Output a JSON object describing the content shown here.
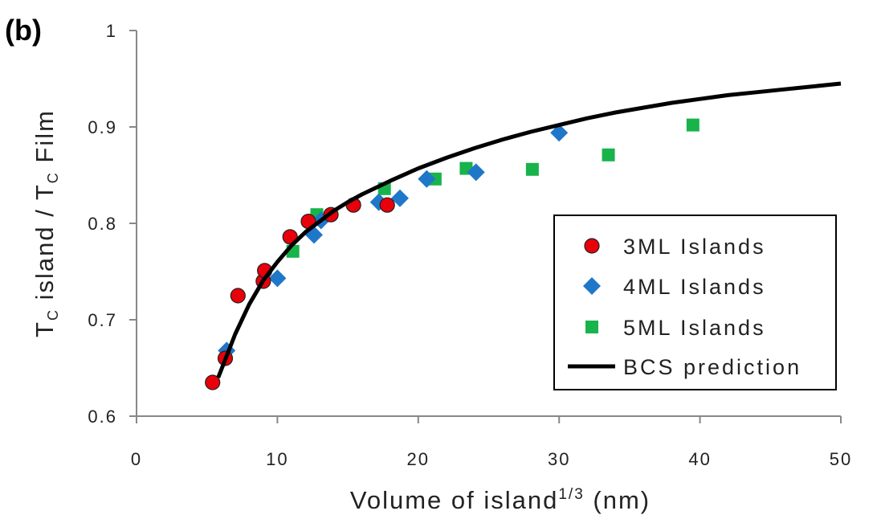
{
  "panel_label": "(b)",
  "chart_data": {
    "type": "scatter",
    "xlabel": {
      "main": "Volume of island",
      "sup": "1/3",
      "unit": " (nm)"
    },
    "ylabel": {
      "parts": [
        "T",
        "C",
        " island / T",
        "C",
        " Film"
      ]
    },
    "xlim": [
      0,
      50
    ],
    "ylim": [
      0.6,
      1.0
    ],
    "xticks": [
      0,
      10,
      20,
      30,
      40,
      50
    ],
    "yticks": [
      0.6,
      0.7,
      0.8,
      0.9,
      1.0
    ],
    "xtick_labels": [
      "0",
      "10",
      "20",
      "30",
      "40",
      "50"
    ],
    "ytick_labels": [
      "0.6",
      "0.7",
      "0.8",
      "0.9",
      "1"
    ],
    "grid": false,
    "legend_position": "bottom-right",
    "series": [
      {
        "name": "3ML Islands",
        "marker": "circle",
        "color": "#e8000b",
        "points": [
          [
            5.4,
            0.635
          ],
          [
            6.3,
            0.66
          ],
          [
            7.2,
            0.725
          ],
          [
            9.0,
            0.74
          ],
          [
            9.1,
            0.751
          ],
          [
            10.9,
            0.786
          ],
          [
            12.2,
            0.802
          ],
          [
            13.8,
            0.809
          ],
          [
            15.4,
            0.819
          ],
          [
            17.8,
            0.819
          ]
        ]
      },
      {
        "name": "4ML Islands",
        "marker": "diamond",
        "color": "#1f77c9",
        "points": [
          [
            6.4,
            0.668
          ],
          [
            10.0,
            0.743
          ],
          [
            12.6,
            0.788
          ],
          [
            13.1,
            0.803
          ],
          [
            17.2,
            0.822
          ],
          [
            18.7,
            0.826
          ],
          [
            20.6,
            0.846
          ],
          [
            24.1,
            0.853
          ],
          [
            30.0,
            0.894
          ]
        ]
      },
      {
        "name": "5ML Islands",
        "marker": "square",
        "color": "#18b34a",
        "points": [
          [
            11.1,
            0.771
          ],
          [
            12.8,
            0.809
          ],
          [
            17.6,
            0.836
          ],
          [
            21.2,
            0.846
          ],
          [
            23.4,
            0.857
          ],
          [
            28.1,
            0.856
          ],
          [
            33.5,
            0.871
          ],
          [
            39.5,
            0.902
          ]
        ]
      },
      {
        "name": "BCS prediction",
        "marker": "line",
        "color": "#000000",
        "points": [
          [
            5.8,
            0.64
          ],
          [
            7.0,
            0.685
          ],
          [
            8.0,
            0.716
          ],
          [
            9.0,
            0.741
          ],
          [
            10.0,
            0.76
          ],
          [
            11.0,
            0.777
          ],
          [
            12.0,
            0.791
          ],
          [
            13.0,
            0.802
          ],
          [
            14.0,
            0.813
          ],
          [
            15.0,
            0.822
          ],
          [
            16.0,
            0.83
          ],
          [
            17.0,
            0.837
          ],
          [
            18.0,
            0.844
          ],
          [
            20.0,
            0.857
          ],
          [
            22.0,
            0.868
          ],
          [
            24.0,
            0.878
          ],
          [
            26.0,
            0.887
          ],
          [
            28.0,
            0.895
          ],
          [
            30.0,
            0.902
          ],
          [
            32.0,
            0.909
          ],
          [
            34.0,
            0.915
          ],
          [
            36.0,
            0.92
          ],
          [
            38.0,
            0.925
          ],
          [
            40.0,
            0.929
          ],
          [
            42.0,
            0.933
          ],
          [
            44.0,
            0.936
          ],
          [
            46.0,
            0.939
          ],
          [
            48.0,
            0.942
          ],
          [
            50.0,
            0.945
          ]
        ]
      }
    ]
  }
}
